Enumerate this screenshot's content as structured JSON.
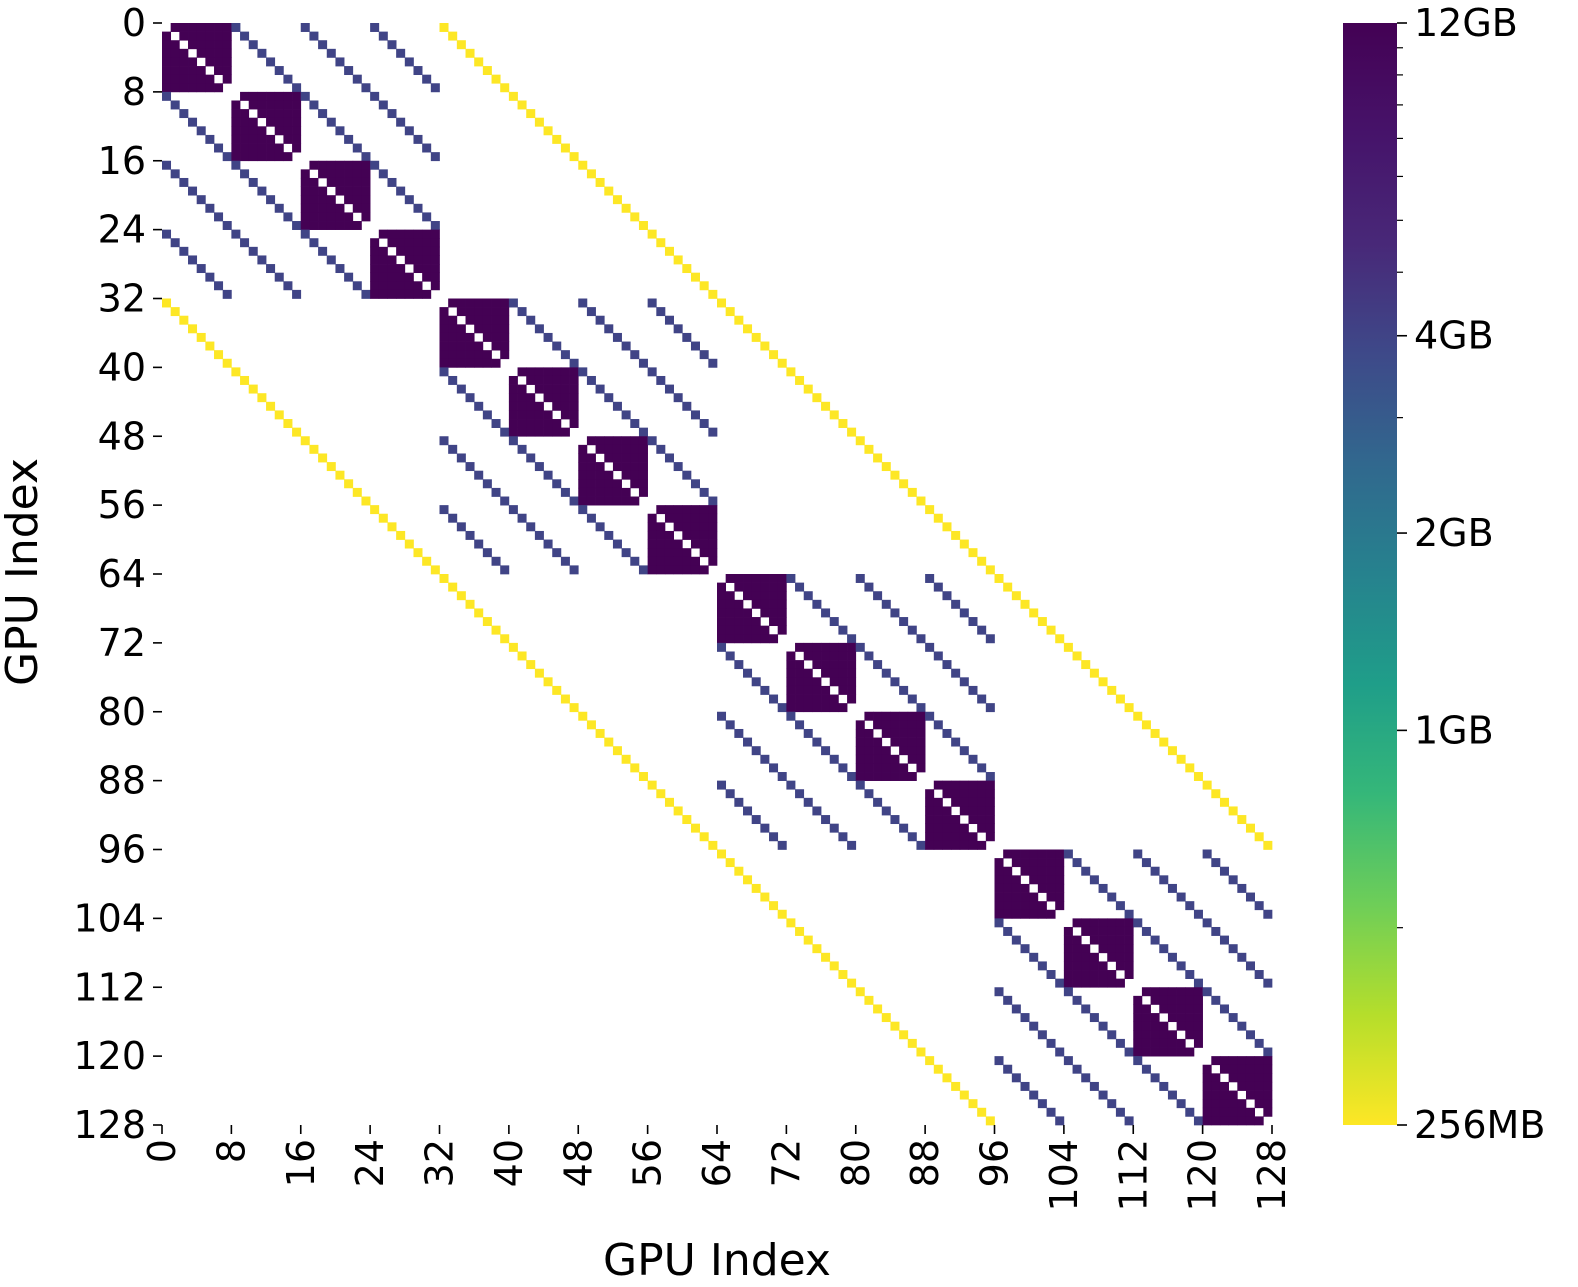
{
  "chart_data": {
    "type": "heatmap",
    "title": "",
    "xlabel": "GPU Index",
    "ylabel": "GPU Index",
    "n_gpus": 128,
    "x_ticks": [
      0,
      8,
      16,
      24,
      32,
      40,
      48,
      56,
      64,
      72,
      80,
      88,
      96,
      104,
      112,
      120,
      128
    ],
    "y_ticks": [
      0,
      8,
      16,
      24,
      32,
      40,
      48,
      56,
      64,
      72,
      80,
      88,
      96,
      104,
      112,
      120,
      128
    ],
    "x_tick_labels": [
      "0",
      "8",
      "16",
      "24",
      "32",
      "40",
      "48",
      "56",
      "64",
      "72",
      "80",
      "88",
      "96",
      "104",
      "112",
      "120",
      "128"
    ],
    "y_tick_labels": [
      "0",
      "8",
      "16",
      "24",
      "32",
      "40",
      "48",
      "56",
      "64",
      "72",
      "80",
      "88",
      "96",
      "104",
      "112",
      "120",
      "128"
    ],
    "colormap": "viridis_r",
    "colorbar": {
      "scale": "log",
      "ticks": [
        {
          "label": "256MB",
          "value_mb": 256
        },
        {
          "label": "1GB",
          "value_mb": 1024
        },
        {
          "label": "2GB",
          "value_mb": 2048
        },
        {
          "label": "4GB",
          "value_mb": 4096
        },
        {
          "label": "12GB",
          "value_mb": 12288
        }
      ],
      "minor_ticks_mb": [
        512,
        3072,
        5120,
        6144,
        7168,
        8192,
        9216,
        10240,
        11264
      ]
    },
    "pattern": {
      "block_size": 8,
      "group_size": 32,
      "intra_block_mb": 12288,
      "intra_block_diagonal_mb": 0,
      "intra_group_offset_diagonal_mb": 4096,
      "cross_group_offset_diagonal": {
        "offset": 32,
        "value_mb": 256
      },
      "empty_mb": 0
    },
    "colors": {
      "high": "#440154",
      "mid": "#3b528b",
      "low": "#fde725"
    },
    "grid": false,
    "legend": "colorbar-right"
  }
}
